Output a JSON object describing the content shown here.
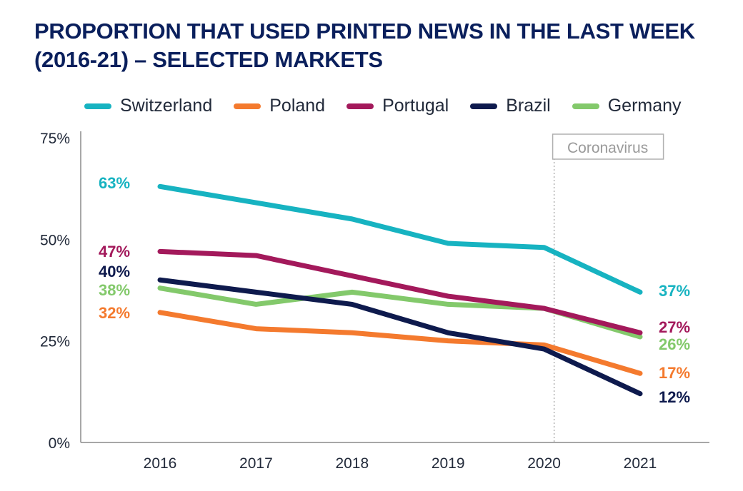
{
  "title_line1": "PROPORTION THAT USED PRINTED NEWS IN THE LAST WEEK",
  "title_line2": "(2016-21) – SELECTED MARKETS",
  "chart_data": {
    "type": "line",
    "x": [
      "2016",
      "2017",
      "2018",
      "2019",
      "2020",
      "2021"
    ],
    "ylim": [
      0,
      75
    ],
    "yticks": [
      "0%",
      "25%",
      "50%",
      "75%"
    ],
    "yticks_values": [
      0,
      25,
      50,
      75
    ],
    "grid": false,
    "legend_position": "top",
    "annotation": {
      "label": "Coronavirus",
      "x": "2020"
    },
    "series": [
      {
        "name": "Switzerland",
        "color": "#17b3c1",
        "values": [
          63,
          59,
          55,
          49,
          48,
          37
        ],
        "start_label": "63%",
        "end_label": "37%"
      },
      {
        "name": "Poland",
        "color": "#f47a2e",
        "values": [
          32,
          28,
          27,
          25,
          24,
          17
        ],
        "start_label": "32%",
        "end_label": "17%"
      },
      {
        "name": "Portugal",
        "color": "#a3195b",
        "values": [
          47,
          46,
          41,
          36,
          33,
          27
        ],
        "start_label": "47%",
        "end_label": "27%"
      },
      {
        "name": "Brazil",
        "color": "#0e1a4d",
        "values": [
          40,
          37,
          34,
          27,
          23,
          12
        ],
        "start_label": "40%",
        "end_label": "12%"
      },
      {
        "name": "Germany",
        "color": "#83c96b",
        "values": [
          38,
          34,
          37,
          34,
          33,
          26
        ],
        "start_label": "38%",
        "end_label": "26%"
      }
    ]
  }
}
